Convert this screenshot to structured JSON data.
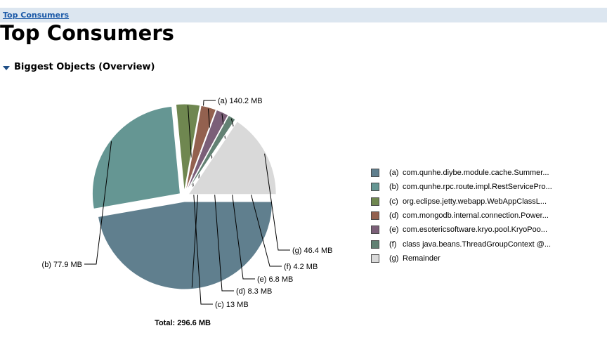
{
  "breadcrumb": {
    "label": "Top Consumers"
  },
  "page": {
    "title": "Top Consumers"
  },
  "section": {
    "title": "Biggest Objects (Overview)",
    "icon": "triangle-down-icon"
  },
  "chart_data": {
    "type": "pie",
    "unit": "MB",
    "total_label": "Total: 296.6 MB",
    "slices": [
      {
        "key": "(a)",
        "value": 140.2,
        "value_label": "140.2 MB",
        "legend": "com.qunhe.diybe.module.cache.Summer...",
        "color": "#607f8e",
        "exploded": true
      },
      {
        "key": "(b)",
        "value": 77.9,
        "value_label": "77.9 MB",
        "legend": "com.qunhe.rpc.route.impl.RestServicePro...",
        "color": "#659693",
        "exploded": true
      },
      {
        "key": "(c)",
        "value": 13,
        "value_label": "13 MB",
        "legend": "org.eclipse.jetty.webapp.WebAppClassL...",
        "color": "#6f8750",
        "exploded": true
      },
      {
        "key": "(d)",
        "value": 8.3,
        "value_label": "8.3 MB",
        "legend": "com.mongodb.internal.connection.Power...",
        "color": "#93614f",
        "exploded": true
      },
      {
        "key": "(e)",
        "value": 6.8,
        "value_label": "6.8 MB",
        "legend": "com.esotericsoftware.kryo.pool.KryoPoo...",
        "color": "#7b5f78",
        "exploded": true
      },
      {
        "key": "(f)",
        "value": 4.2,
        "value_label": "4.2 MB",
        "legend": "class java.beans.ThreadGroupContext @...",
        "color": "#628173",
        "exploded": true
      },
      {
        "key": "(g)",
        "value": 46.4,
        "value_label": "46.4 MB",
        "legend": "Remainder",
        "color": "#d9d9d9",
        "exploded": true
      }
    ]
  }
}
